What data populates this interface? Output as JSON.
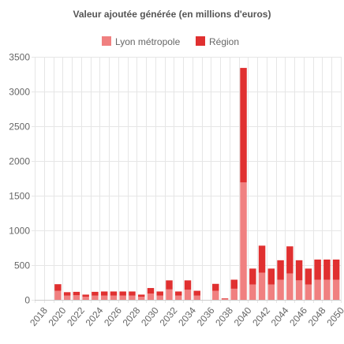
{
  "chart_data": {
    "type": "bar",
    "stacked": true,
    "title": "Valeur ajoutée générée (en millions d'euros)",
    "xlabel": "",
    "ylabel": "",
    "ylim": [
      0,
      3500
    ],
    "yticks": [
      0,
      500,
      1000,
      1500,
      2000,
      2500,
      3000,
      3500
    ],
    "grid": true,
    "legend_position": "top",
    "categories": [
      "2018",
      "2019",
      "2020",
      "2021",
      "2022",
      "2023",
      "2024",
      "2025",
      "2026",
      "2027",
      "2028",
      "2029",
      "2030",
      "2031",
      "2032",
      "2033",
      "2034",
      "2035",
      "2036",
      "2037",
      "2038",
      "2039",
      "2040",
      "2041",
      "2042",
      "2043",
      "2044",
      "2045",
      "2046",
      "2047",
      "2048",
      "2049",
      "2050"
    ],
    "x_tick_labels": [
      "2018",
      "2020",
      "2022",
      "2024",
      "2026",
      "2028",
      "2030",
      "2032",
      "2034",
      "2036",
      "2038",
      "2040",
      "2042",
      "2044",
      "2046",
      "2048",
      "2050"
    ],
    "series": [
      {
        "name": "Lyon métropole",
        "color": "#f08080",
        "values": [
          0,
          0,
          130,
          60,
          65,
          45,
          60,
          60,
          60,
          60,
          60,
          45,
          90,
          60,
          150,
          60,
          145,
          60,
          0,
          130,
          10,
          160,
          1690,
          220,
          390,
          220,
          290,
          380,
          280,
          220,
          290,
          290,
          290
        ]
      },
      {
        "name": "Région",
        "color": "#e03030",
        "values": [
          0,
          0,
          95,
          50,
          50,
          30,
          55,
          60,
          60,
          60,
          60,
          30,
          80,
          60,
          130,
          60,
          135,
          70,
          0,
          100,
          10,
          130,
          1650,
          230,
          390,
          230,
          280,
          390,
          290,
          230,
          290,
          290,
          290
        ]
      }
    ]
  }
}
